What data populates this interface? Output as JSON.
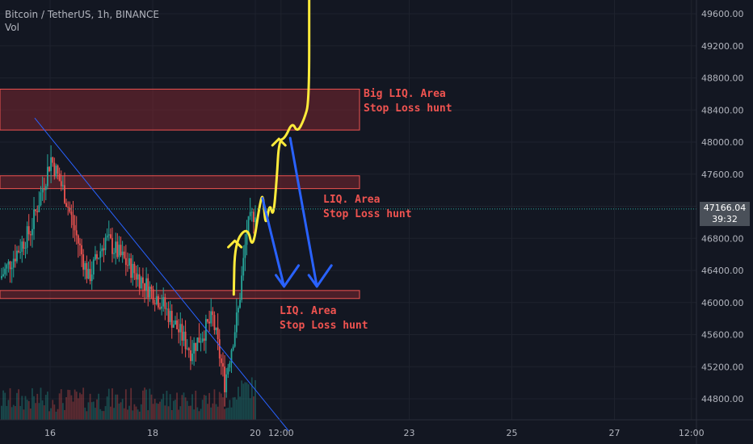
{
  "header": {
    "symbol_line": "Bitcoin / TetherUS, 1h, BINANCE",
    "indicator": "Vol"
  },
  "price_badge": {
    "price": "47166.04",
    "countdown": "39:32"
  },
  "colors": {
    "background": "#131722",
    "grid": "#1e222d",
    "up_candle": "#26a69a",
    "down_candle": "#ef5350",
    "liq_zone_fill": "#7a2630",
    "liq_zone_border": "#ef5350",
    "trendline": "#2962ff",
    "arrow_blue": "#2962ff",
    "path_yellow": "#ffeb3b",
    "annotation_red": "#ef5350",
    "axis_text": "#b2b5be"
  },
  "annotations": [
    {
      "line1": "Big LIQ. Area",
      "line2": "Stop Loss hunt"
    },
    {
      "line1": "LIQ. Area",
      "line2": "Stop Loss hunt"
    },
    {
      "line1": "LIQ. Area",
      "line2": "Stop Loss hunt"
    }
  ],
  "chart_data": {
    "type": "candlestick",
    "title": "Bitcoin / TetherUS, 1h, BINANCE",
    "y_axis": {
      "ticks": [
        "49600.00",
        "49200.00",
        "48800.00",
        "48400.00",
        "48000.00",
        "47600.00",
        "47200.00",
        "46800.00",
        "46400.00",
        "46000.00",
        "45600.00",
        "45200.00",
        "44800.00"
      ],
      "range": [
        44600,
        49850
      ]
    },
    "x_axis": {
      "ticks": [
        {
          "label": "16",
          "day": 16
        },
        {
          "label": "18",
          "day": 18
        },
        {
          "label": "20",
          "day": 20
        },
        {
          "label": "12:00",
          "day": 20.5
        },
        {
          "label": "23",
          "day": 23
        },
        {
          "label": "25",
          "day": 25
        },
        {
          "label": "27",
          "day": 27
        },
        {
          "label": "12:00",
          "day": 28.5
        }
      ],
      "range": [
        15.1,
        29.2
      ]
    },
    "current_price": 47166.04,
    "liquidity_zones": [
      {
        "low": 48150,
        "high": 48660,
        "label": "Big LIQ. Area"
      },
      {
        "low": 47420,
        "high": 47580,
        "label": "LIQ. Area"
      },
      {
        "low": 46050,
        "high": 46150,
        "label": "LIQ. Area"
      }
    ],
    "trendline": {
      "from": {
        "day": 15.7,
        "price": 48300
      },
      "to": {
        "day": 20.65,
        "price": 44400
      }
    },
    "projection_path": [
      {
        "day": 19.58,
        "price": 46100
      },
      {
        "day": 19.6,
        "price": 46750
      },
      {
        "day": 19.85,
        "price": 46950
      },
      {
        "day": 19.95,
        "price": 46650
      },
      {
        "day": 20.08,
        "price": 47200
      },
      {
        "day": 20.15,
        "price": 47380
      },
      {
        "day": 20.2,
        "price": 46920
      },
      {
        "day": 20.28,
        "price": 47250
      },
      {
        "day": 20.35,
        "price": 47050
      },
      {
        "day": 20.42,
        "price": 47550
      },
      {
        "day": 20.46,
        "price": 48020
      },
      {
        "day": 20.58,
        "price": 48050
      },
      {
        "day": 20.72,
        "price": 48250
      },
      {
        "day": 20.82,
        "price": 48120
      },
      {
        "day": 20.95,
        "price": 48280
      },
      {
        "day": 21.05,
        "price": 48500
      },
      {
        "day": 21.05,
        "price": 49800
      }
    ],
    "down_arrows": [
      {
        "from": {
          "day": 20.14,
          "price": 47300
        },
        "to": {
          "day": 20.56,
          "price": 46200
        }
      },
      {
        "from": {
          "day": 20.68,
          "price": 48050
        },
        "to": {
          "day": 21.2,
          "price": 46200
        }
      }
    ],
    "candles": [],
    "volumes": []
  }
}
